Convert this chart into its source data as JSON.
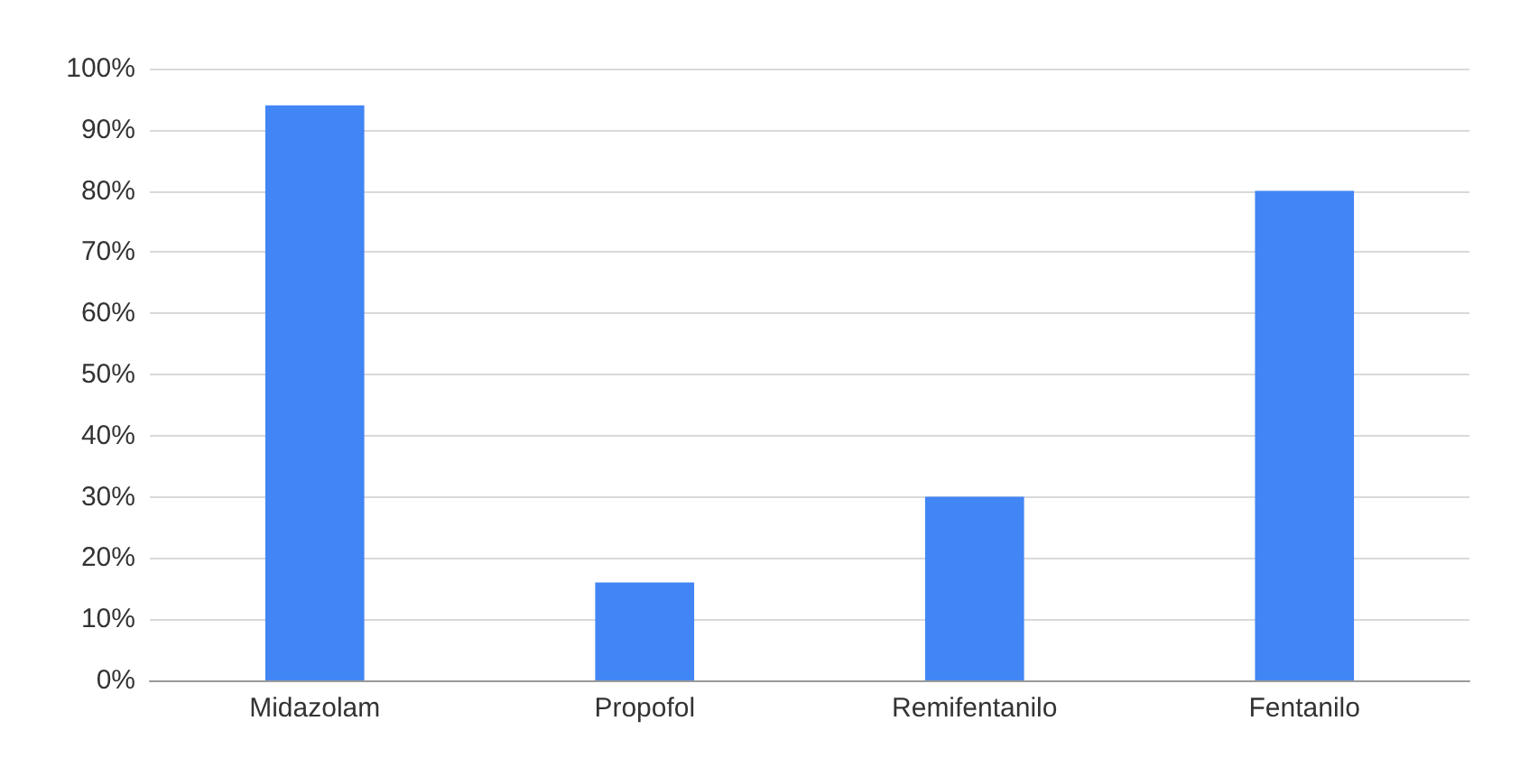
{
  "chart_data": {
    "type": "bar",
    "categories": [
      "Midazolam",
      "Propofol",
      "Remifentanilo",
      "Fentanilo"
    ],
    "values": [
      94,
      16,
      30,
      80
    ],
    "color": "#4285f4",
    "ylim": [
      0,
      100
    ],
    "yticks": [
      {
        "value": 0,
        "label": "0%"
      },
      {
        "value": 10,
        "label": "10%"
      },
      {
        "value": 20,
        "label": "20%"
      },
      {
        "value": 30,
        "label": "30%"
      },
      {
        "value": 40,
        "label": "40%"
      },
      {
        "value": 50,
        "label": "50%"
      },
      {
        "value": 60,
        "label": "60%"
      },
      {
        "value": 70,
        "label": "70%"
      },
      {
        "value": 80,
        "label": "80%"
      },
      {
        "value": 90,
        "label": "90%"
      },
      {
        "value": 100,
        "label": "100%"
      }
    ],
    "grid": "y"
  }
}
